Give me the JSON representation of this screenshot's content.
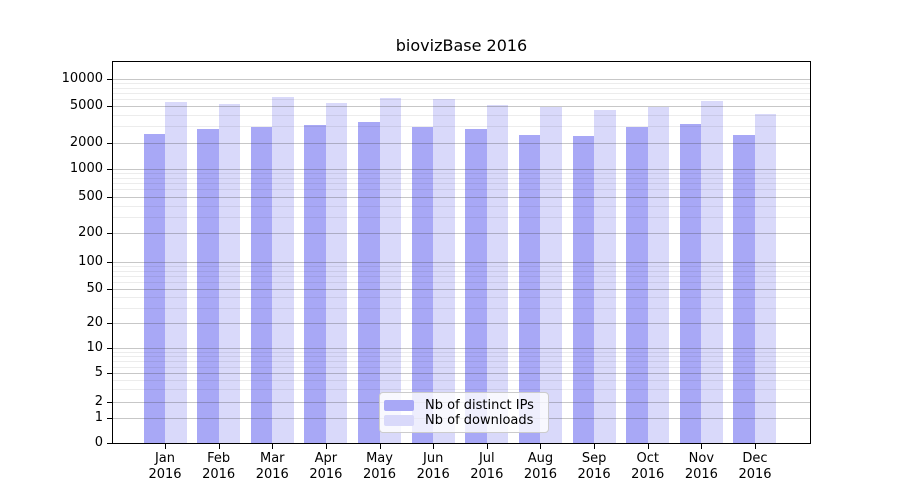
{
  "title": "biovizBase 2016",
  "chart_data": {
    "type": "bar",
    "title": "biovizBase 2016",
    "categories": [
      "Jan",
      "Feb",
      "Mar",
      "Apr",
      "May",
      "Jun",
      "Jul",
      "Aug",
      "Sep",
      "Oct",
      "Nov",
      "Dec"
    ],
    "category_year": "2016",
    "series": [
      {
        "name": "Nb of distinct IPs",
        "color": "#a8a8f6",
        "values": [
          2490,
          2790,
          2980,
          3110,
          3330,
          2980,
          2790,
          2420,
          2380,
          2940,
          3170,
          2420
        ]
      },
      {
        "name": "Nb of downloads",
        "color": "#d9d9fa",
        "values": [
          5540,
          5300,
          6350,
          5450,
          6190,
          6050,
          5150,
          4870,
          4490,
          4870,
          5690,
          4130
        ]
      }
    ],
    "xlabel": "",
    "ylabel": "",
    "yscale": "log",
    "y_ticks": [
      0,
      1,
      2,
      5,
      10,
      20,
      50,
      100,
      200,
      500,
      1000,
      2000,
      5000,
      10000
    ],
    "ylim": [
      0,
      20000
    ],
    "grid": "horizontal major and minor",
    "legend_position": "lower center inside plot"
  },
  "legend": {
    "items": [
      {
        "label": "Nb of distinct IPs",
        "color": "#a8a8f6"
      },
      {
        "label": "Nb of downloads",
        "color": "#d9d9fa"
      }
    ]
  },
  "colors": {
    "ips_bar": "#a8a8f6",
    "downloads_bar": "#d9d9fa",
    "axis": "#000000",
    "text": "#000000",
    "legend_border": "#cccccc"
  }
}
